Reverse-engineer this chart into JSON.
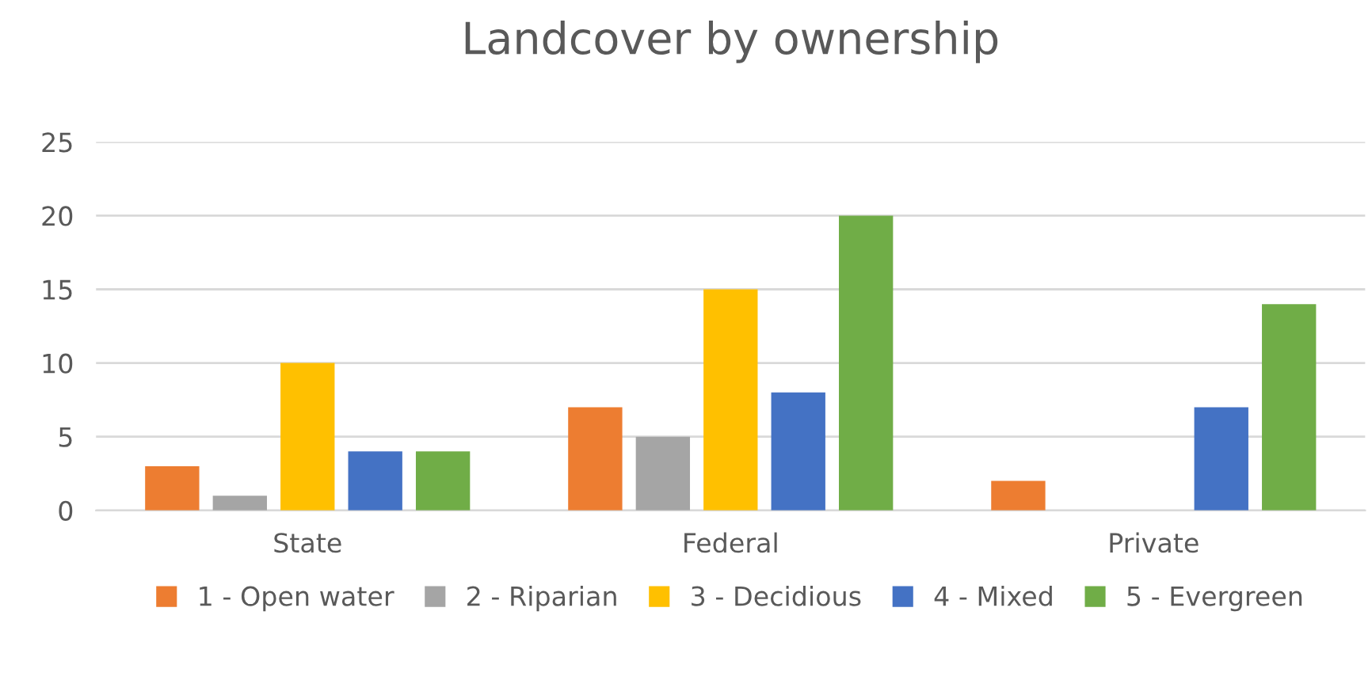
{
  "chart_data": {
    "type": "bar",
    "title": "Landcover by ownership",
    "categories": [
      "State",
      "Federal",
      "Private"
    ],
    "series": [
      {
        "name": "1 - Open water",
        "color": "#ed7d31",
        "values": [
          3,
          7,
          2
        ]
      },
      {
        "name": "2 - Riparian",
        "color": "#a5a5a5",
        "values": [
          1,
          5,
          0
        ]
      },
      {
        "name": "3 - Decidious",
        "color": "#ffc000",
        "values": [
          10,
          15,
          0
        ]
      },
      {
        "name": "4 - Mixed",
        "color": "#4472c4",
        "values": [
          4,
          8,
          7
        ]
      },
      {
        "name": "5 - Evergreen",
        "color": "#70ad47",
        "values": [
          4,
          20,
          14
        ]
      }
    ],
    "ylim": [
      0,
      25
    ],
    "yticks": [
      0,
      5,
      10,
      15,
      20,
      25
    ],
    "grid": "y",
    "legend": "bottom"
  }
}
